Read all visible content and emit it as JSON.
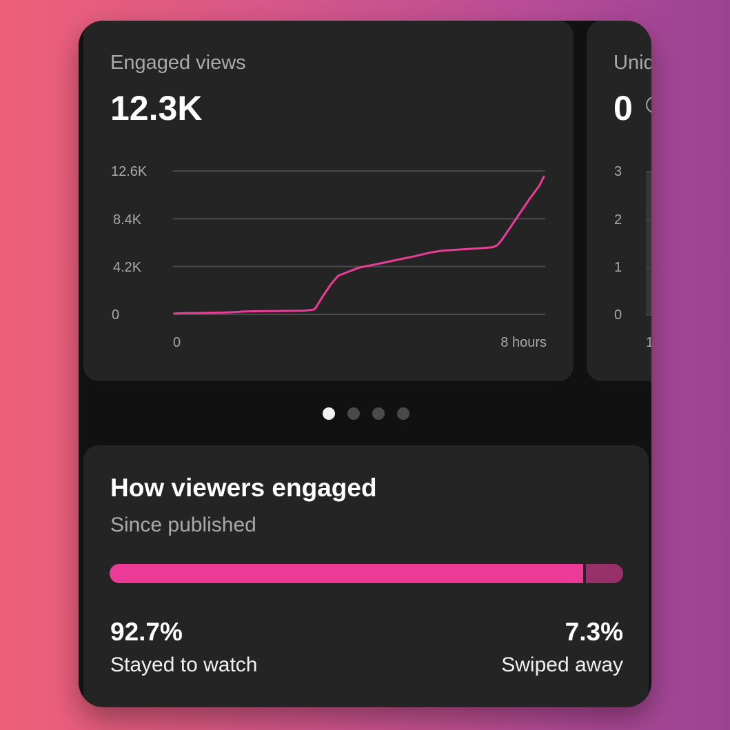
{
  "engaged_views": {
    "label": "Engaged views",
    "value": "12.3K"
  },
  "peek_card": {
    "label_partial": "Uniq",
    "value": "0",
    "y_ticks": [
      "3",
      "2",
      "1",
      "0"
    ],
    "x_tick_partial": "1"
  },
  "chart_data": {
    "type": "line",
    "series": [
      {
        "color": "#e93d97",
        "x": [
          0,
          0.1,
          0.2,
          0.45,
          0.7,
          1.0,
          1.3,
          1.5,
          1.75,
          1.95,
          2.2,
          2.5,
          2.8,
          3.0,
          3.05,
          3.2,
          3.4,
          3.55,
          3.65,
          3.8,
          4.0,
          4.3,
          4.6,
          4.9,
          5.2,
          5.5,
          5.8,
          6.2,
          6.6,
          6.9,
          7.0,
          7.1,
          7.3,
          7.5,
          7.7,
          7.9,
          8.0
        ],
        "y": [
          70,
          90,
          100,
          110,
          130,
          150,
          200,
          250,
          270,
          280,
          290,
          300,
          320,
          400,
          500,
          1500,
          2700,
          3400,
          3550,
          3800,
          4100,
          4350,
          4600,
          4850,
          5100,
          5400,
          5600,
          5700,
          5800,
          5900,
          6100,
          6600,
          7800,
          9000,
          10200,
          11300,
          12100
        ]
      }
    ],
    "ylim": [
      0,
      12600
    ],
    "y_ticks": [
      "0",
      "4.2K",
      "8.4K",
      "12.6K"
    ],
    "x_ticks": [
      "0",
      "8 hours"
    ],
    "xlim": [
      0,
      8
    ],
    "grid": true
  },
  "carousel": {
    "count": 4,
    "active_index": 0
  },
  "how_engaged": {
    "title": "How viewers engaged",
    "subtitle": "Since published",
    "stayed_fraction": 0.927,
    "stayed_pct": "92.7%",
    "stayed_label": "Stayed to watch",
    "swiped_pct": "7.3%",
    "swiped_label": "Swiped away",
    "colors": {
      "stayed": "#ec3b96",
      "swiped": "#98306a"
    }
  }
}
